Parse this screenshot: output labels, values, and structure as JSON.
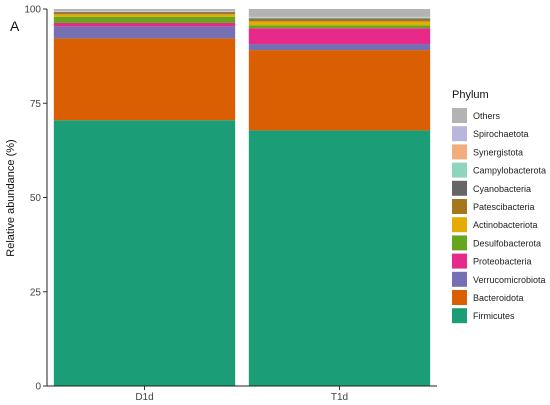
{
  "chart_data": {
    "type": "bar",
    "stacked": true,
    "panel_label": "A",
    "ylabel": "Relative abundance (%)",
    "xlabel": "",
    "ylim": [
      0,
      100
    ],
    "yticks": [
      "0",
      "25",
      "50",
      "75",
      "100"
    ],
    "categories": [
      "D1d",
      "T1d"
    ],
    "legend": {
      "title": "Phylum",
      "position": "right"
    },
    "series": [
      {
        "name": "Firmicutes",
        "color": "#1b9e77",
        "values": [
          70.5,
          67.8
        ]
      },
      {
        "name": "Bacteroidota",
        "color": "#d95f02",
        "values": [
          21.7,
          21.3
        ]
      },
      {
        "name": "Verrucomicrobiota",
        "color": "#7570b3",
        "values": [
          3.2,
          1.6
        ]
      },
      {
        "name": "Proteobacteria",
        "color": "#e7298a",
        "values": [
          0.9,
          4.2
        ]
      },
      {
        "name": "Desulfobacterota",
        "color": "#66a61e",
        "values": [
          1.6,
          0.8
        ]
      },
      {
        "name": "Actinobacteriota",
        "color": "#e6ab02",
        "values": [
          0.7,
          1.0
        ]
      },
      {
        "name": "Patescibacteria",
        "color": "#a6761d",
        "values": [
          0.4,
          0.5
        ]
      },
      {
        "name": "Cyanobacteria",
        "color": "#666666",
        "values": [
          0.2,
          0.3
        ]
      },
      {
        "name": "Campylobacterota",
        "color": "#8fd4bd",
        "values": [
          0.1,
          0.2
        ]
      },
      {
        "name": "Synergistota",
        "color": "#f4ad7d",
        "values": [
          0.1,
          0.1
        ]
      },
      {
        "name": "Spirochaetota",
        "color": "#b9b6dc",
        "values": [
          0.2,
          0.1
        ]
      },
      {
        "name": "Others",
        "color": "#b3b3b3",
        "values": [
          0.4,
          2.1
        ]
      }
    ]
  }
}
